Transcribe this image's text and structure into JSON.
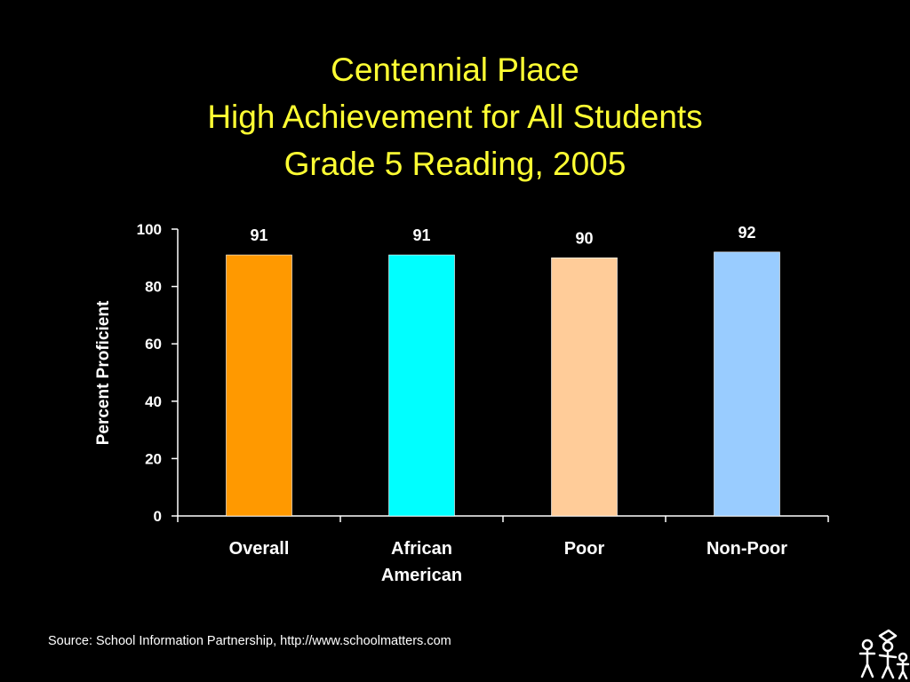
{
  "chart_data": {
    "type": "bar",
    "title_lines": [
      "Centennial Place",
      "High Achievement for All Students",
      "Grade 5 Reading, 2005"
    ],
    "categories": [
      [
        "Overall"
      ],
      [
        "African",
        "American"
      ],
      [
        "Poor"
      ],
      [
        "Non-Poor"
      ]
    ],
    "values": [
      91,
      91,
      90,
      92
    ],
    "bar_colors": [
      "#FF9900",
      "#00FFFF",
      "#FFCC99",
      "#99CCFF"
    ],
    "ylabel": "Percent Proficient",
    "xlabel": "",
    "ylim": [
      0,
      100
    ],
    "yticks": [
      0,
      20,
      40,
      60,
      80,
      100
    ],
    "grid": false,
    "legend": "none",
    "text_color": "#FFFFFF",
    "title_color": "#FFFF33"
  },
  "footer": {
    "source": "Source: School Information Partnership, http://www.schoolmatters.com"
  },
  "logo": {
    "icon": "children-logo-icon"
  }
}
